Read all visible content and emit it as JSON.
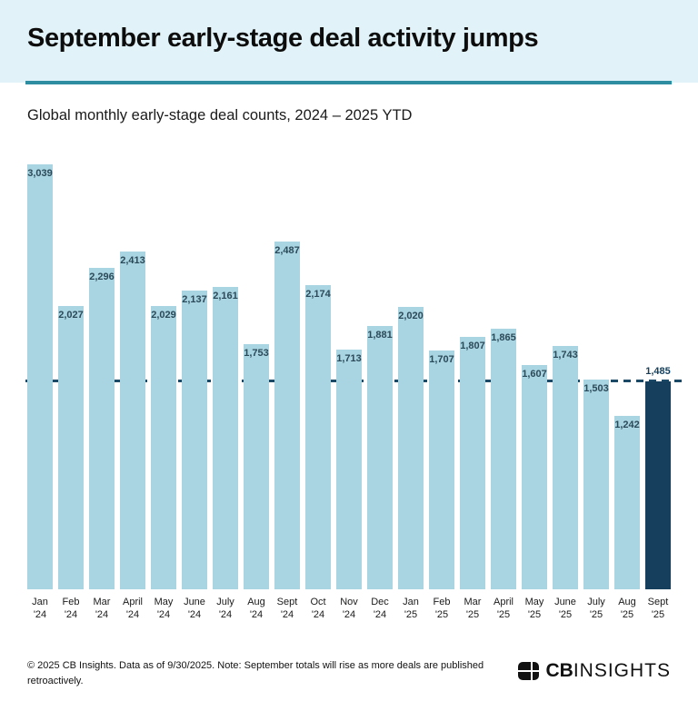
{
  "header": {
    "title": "September early-stage deal activity jumps",
    "subtitle": "Global monthly early-stage deal counts, 2024 – 2025 YTD"
  },
  "chart_data": {
    "type": "bar",
    "title": "September early-stage deal activity jumps",
    "subtitle": "Global monthly early-stage deal counts, 2024 – 2025 YTD",
    "categories": [
      "Jan '24",
      "Feb '24",
      "Mar '24",
      "April '24",
      "May '24",
      "June '24",
      "July '24",
      "Aug '24",
      "Sept '24",
      "Oct '24",
      "Nov '24",
      "Dec '24",
      "Jan '25",
      "Feb '25",
      "Mar '25",
      "April '25",
      "May '25",
      "June '25",
      "July '25",
      "Aug '25",
      "Sept '25"
    ],
    "values": [
      3039,
      2027,
      2296,
      2413,
      2029,
      2137,
      2161,
      1753,
      2487,
      2174,
      1713,
      1881,
      2020,
      1707,
      1807,
      1865,
      1607,
      1743,
      1503,
      1242,
      1485
    ],
    "value_labels": [
      "3,039",
      "2,027",
      "2,296",
      "2,413",
      "2,029",
      "2,137",
      "2,161",
      "1,753",
      "2,487",
      "2,174",
      "1,713",
      "1,881",
      "2,020",
      "1,707",
      "1,807",
      "1,865",
      "1,607",
      "1,743",
      "1,503",
      "1,242",
      "1,485"
    ],
    "highlight_index": 20,
    "reference_line_value": 1485,
    "ylim": [
      0,
      3039
    ],
    "grid": false,
    "legend": false,
    "colors": {
      "bar": "#a9d4e1",
      "highlight_bar": "#153f5c",
      "reference_line": "#1c4a66",
      "value_label": "#2b4a59",
      "header_background": "#e1f3f8",
      "header_rule": "#2e8da0"
    }
  },
  "footer": {
    "note": "© 2025 CB Insights. Data as of 9/30/2025. Note: September totals will rise as more deals are published retroactively.",
    "logo_bold": "CB",
    "logo_light": "INSIGHTS"
  }
}
